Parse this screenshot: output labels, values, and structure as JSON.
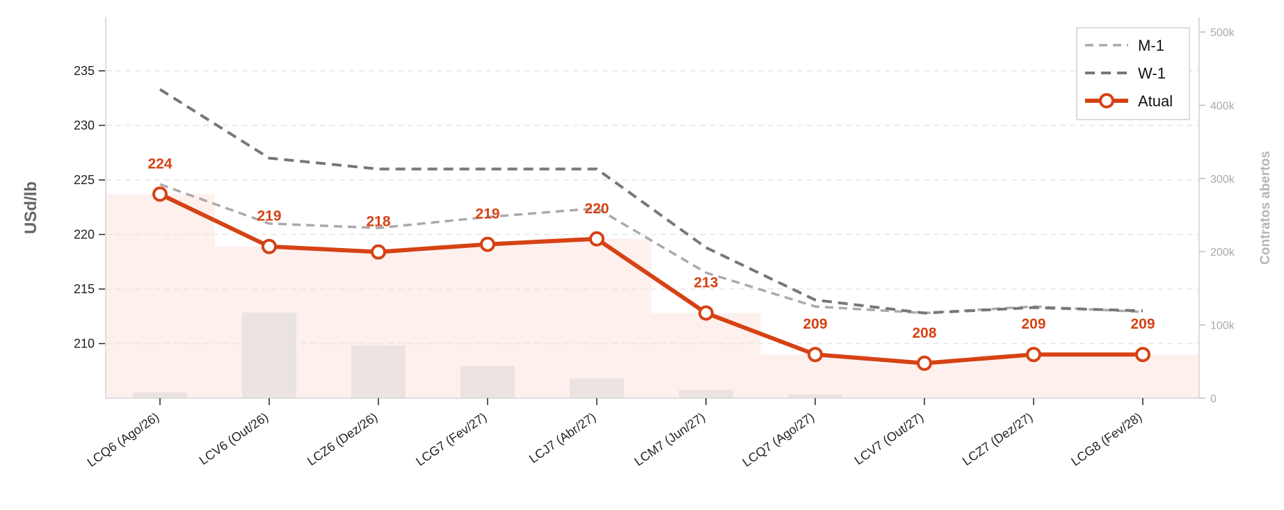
{
  "chart_data": {
    "type": "line",
    "categories": [
      "LCQ6 (Ago/26)",
      "LCV6 (Out/26)",
      "LCZ6 (Dez/26)",
      "LCG7 (Fev/27)",
      "LCJ7 (Abr/27)",
      "LCM7 (Jun/27)",
      "LCQ7 (Ago/27)",
      "LCV7 (Out/27)",
      "LCZ7 (Dez/27)",
      "LCG8 (Fev/28)"
    ],
    "ylabel": "USd/lb",
    "y2label": "Contratos abertos",
    "ylim": [
      215,
      239.9
    ],
    "y2lim": [
      0,
      520000
    ],
    "yticks": [
      210,
      215,
      220,
      225,
      230,
      235
    ],
    "y2ticks": [
      0,
      100000,
      200000,
      300000,
      400000,
      500000
    ],
    "y2ticklabels": [
      "0",
      "100k",
      "200k",
      "300k",
      "400k",
      "500k"
    ],
    "grid": true,
    "legend_position": "top-right",
    "series": [
      {
        "name": "M-1",
        "style": "dashed",
        "color": "#aaaaaa",
        "values": [
          224.6,
          221.0,
          220.6,
          221.6,
          222.4,
          216.5,
          213.4,
          212.8,
          213.4,
          212.9
        ]
      },
      {
        "name": "W-1",
        "style": "dashed",
        "color": "#777777",
        "values": [
          233.3,
          227.0,
          226.0,
          226.0,
          226.0,
          218.8,
          214.0,
          212.8,
          213.3,
          213.0
        ]
      },
      {
        "name": "Atual",
        "style": "solid-marker",
        "color": "#d64214",
        "values": [
          223.7,
          218.9,
          218.4,
          219.1,
          219.6,
          212.8,
          209.0,
          208.2,
          209.0,
          209.0
        ]
      }
    ],
    "data_labels": [
      "224",
      "219",
      "218",
      "219",
      "220",
      "213",
      "209",
      "208",
      "209",
      "209"
    ],
    "open_interest": [
      8000,
      117000,
      72000,
      44000,
      27000,
      11000,
      5000,
      0,
      0,
      0
    ],
    "colors": {
      "accent": "#d64214",
      "bars": "#ebe3e1",
      "fill": "#fdf0ed"
    }
  }
}
